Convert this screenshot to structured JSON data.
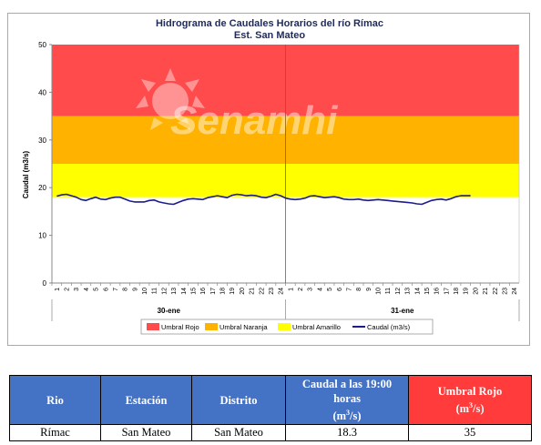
{
  "chart_data": {
    "type": "line",
    "title": "Hidrograma de Caudales Horarios del río Rímac",
    "subtitle": "Est. San Mateo",
    "ylabel": "Caudal  (m3/s)",
    "ylim": [
      0,
      50
    ],
    "yticks": [
      0,
      10,
      20,
      30,
      40,
      50
    ],
    "x_categories": [
      "1",
      "2",
      "3",
      "4",
      "5",
      "6",
      "7",
      "8",
      "9",
      "10",
      "11",
      "12",
      "13",
      "14",
      "15",
      "16",
      "17",
      "18",
      "19",
      "20",
      "21",
      "22",
      "23",
      "24",
      "1",
      "2",
      "3",
      "4",
      "5",
      "6",
      "7",
      "8",
      "9",
      "10",
      "11",
      "12",
      "13",
      "14",
      "15",
      "16",
      "17",
      "18",
      "19",
      "20",
      "21",
      "22",
      "23",
      "24"
    ],
    "day_labels": [
      "30-ene",
      "31-ene"
    ],
    "thresholds": [
      {
        "name": "Umbral Rojo",
        "from": 35,
        "to": 50,
        "color": "#ff4b4b"
      },
      {
        "name": "Umbral Naranja",
        "from": 25,
        "to": 35,
        "color": "#ffb300"
      },
      {
        "name": "Umbral Amarillo",
        "from": 18,
        "to": 25,
        "color": "#ffff00"
      }
    ],
    "series": [
      {
        "name": "Caudal (m3/s)",
        "color": "#1c1c8c",
        "x": [
          0.5,
          1,
          1.5,
          2,
          2.5,
          3,
          3.5,
          4,
          4.5,
          5,
          5.5,
          6,
          6.5,
          7,
          7.5,
          8,
          8.5,
          9,
          9.5,
          10,
          10.5,
          11,
          11.5,
          12,
          12.5,
          13,
          13.5,
          14,
          14.5,
          15,
          15.5,
          16,
          16.5,
          17,
          17.5,
          18,
          18.5,
          19,
          19.5,
          20,
          20.5,
          21,
          21.5,
          22,
          22.5,
          23,
          23.5,
          24,
          24.5,
          25,
          25.5,
          26,
          26.5,
          27,
          27.5,
          28,
          28.5,
          29,
          29.5,
          30,
          30.5,
          31,
          31.5,
          32,
          32.5,
          33,
          33.5,
          34,
          34.5,
          35,
          35.5,
          36,
          36.5,
          37,
          37.5,
          38,
          38.5,
          39,
          39.5,
          40,
          40.5,
          41,
          41.5,
          42,
          42.5,
          43
        ],
        "y": [
          18.2,
          18.5,
          18.6,
          18.3,
          18.0,
          17.5,
          17.3,
          17.7,
          18.0,
          17.6,
          17.5,
          17.8,
          18.0,
          18.0,
          17.6,
          17.2,
          17.0,
          17.0,
          17.0,
          17.3,
          17.4,
          17.0,
          16.8,
          16.6,
          16.5,
          16.9,
          17.3,
          17.6,
          17.7,
          17.6,
          17.5,
          17.9,
          18.1,
          18.3,
          18.1,
          17.9,
          18.4,
          18.6,
          18.5,
          18.3,
          18.4,
          18.3,
          18.0,
          17.9,
          18.2,
          18.6,
          18.3,
          17.8,
          17.6,
          17.5,
          17.6,
          17.8,
          18.2,
          18.3,
          18.1,
          17.9,
          18.0,
          18.1,
          17.9,
          17.6,
          17.5,
          17.5,
          17.6,
          17.4,
          17.3,
          17.4,
          17.5,
          17.4,
          17.3,
          17.2,
          17.1,
          17.0,
          16.9,
          16.8,
          16.6,
          16.5,
          16.9,
          17.3,
          17.5,
          17.6,
          17.4,
          17.7,
          18.1,
          18.3,
          18.3,
          18.3
        ]
      }
    ],
    "legend": [
      "Umbral Rojo",
      "Umbral Naranja",
      "Umbral Amarillo",
      "Caudal (m3/s)"
    ],
    "legend_position": "bottom",
    "grid": false
  },
  "watermark": "Senamhi",
  "table": {
    "headers": {
      "rio": "Rio",
      "estacion": "Estación",
      "distrito": "Distrito",
      "caudal_main": "Caudal a las 19:00 horas",
      "caudal_unit_pre": "(m",
      "caudal_unit_sup": "3",
      "caudal_unit_post": "/s)",
      "umbral_main": "Umbral Rojo",
      "umbral_unit_pre": "(m",
      "umbral_unit_sup": "3",
      "umbral_unit_post": "/s)"
    },
    "row": {
      "rio": "Rímac",
      "estacion": "San Mateo",
      "distrito": "San Mateo",
      "caudal": "18.3",
      "umbral": "35"
    }
  }
}
